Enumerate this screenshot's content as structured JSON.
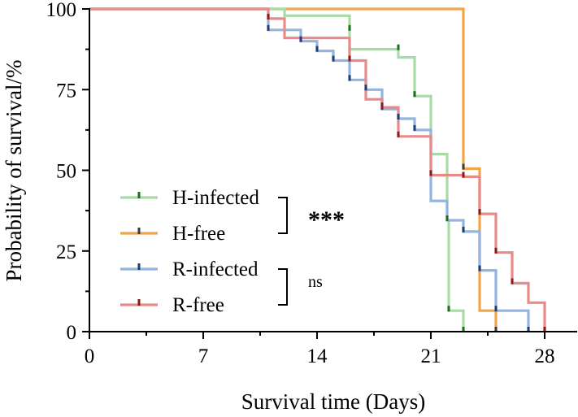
{
  "chart_data": {
    "type": "line",
    "subtype": "kaplan-meier",
    "title": "",
    "xlabel": "Survival time (Days)",
    "ylabel": "Probability of survival/%",
    "xlim": [
      0,
      30
    ],
    "ylim": [
      0,
      100
    ],
    "xticks": [
      0,
      7,
      14,
      21,
      28
    ],
    "yticks": [
      0,
      25,
      50,
      75,
      100
    ],
    "series": [
      {
        "name": "H-infected",
        "color": "#a6dba6",
        "tick_color": "#1f6b1f",
        "steps": [
          [
            0,
            100
          ],
          [
            12,
            100
          ],
          [
            12,
            97.9
          ],
          [
            16,
            97.9
          ],
          [
            16,
            93.5
          ],
          [
            16,
            87.5
          ],
          [
            19,
            87.5
          ],
          [
            19,
            85
          ],
          [
            20,
            85
          ],
          [
            20,
            73
          ],
          [
            21,
            73
          ],
          [
            21,
            55
          ],
          [
            22,
            55
          ],
          [
            22,
            34.5
          ],
          [
            22.1,
            34.5
          ],
          [
            22.1,
            6.5
          ],
          [
            23,
            6.5
          ],
          [
            23,
            0
          ]
        ],
        "censored": [
          [
            16,
            93.5
          ],
          [
            19,
            87.5
          ],
          [
            20,
            73
          ],
          [
            22,
            34.5
          ],
          [
            22.1,
            6.5
          ],
          [
            23,
            0
          ]
        ]
      },
      {
        "name": "H-free",
        "color": "#f0a54a",
        "tick_color": "#3a3a3a",
        "steps": [
          [
            0,
            100
          ],
          [
            23,
            100
          ],
          [
            23,
            50.5
          ],
          [
            24,
            50.5
          ],
          [
            24,
            6.5
          ],
          [
            25,
            6.5
          ],
          [
            25,
            0
          ]
        ],
        "censored": [
          [
            23,
            50.5
          ],
          [
            25,
            0
          ]
        ]
      },
      {
        "name": "R-infected",
        "color": "#94b4e0",
        "tick_color": "#1d3d75",
        "steps": [
          [
            0,
            100
          ],
          [
            11,
            100
          ],
          [
            11,
            93.5
          ],
          [
            13,
            93.5
          ],
          [
            13,
            90
          ],
          [
            14,
            90
          ],
          [
            14,
            87
          ],
          [
            15,
            87
          ],
          [
            15,
            84
          ],
          [
            16,
            84
          ],
          [
            16,
            78
          ],
          [
            17,
            78
          ],
          [
            17,
            75
          ],
          [
            18,
            75
          ],
          [
            18,
            69
          ],
          [
            19,
            69
          ],
          [
            19,
            66
          ],
          [
            20,
            66
          ],
          [
            20,
            62.5
          ],
          [
            21,
            62.5
          ],
          [
            21,
            40.5
          ],
          [
            22,
            40.5
          ],
          [
            22,
            34.5
          ],
          [
            23,
            34.5
          ],
          [
            23,
            31
          ],
          [
            24,
            31
          ],
          [
            24,
            19
          ],
          [
            25,
            19
          ],
          [
            25,
            6.5
          ],
          [
            27,
            6.5
          ],
          [
            27,
            0
          ]
        ],
        "censored": [
          [
            11,
            93.5
          ],
          [
            13,
            90
          ],
          [
            14,
            87
          ],
          [
            15,
            84
          ],
          [
            16,
            78
          ],
          [
            17,
            75
          ],
          [
            18,
            69
          ],
          [
            19,
            66
          ],
          [
            20,
            62.5
          ],
          [
            23,
            31
          ],
          [
            24,
            19
          ],
          [
            25,
            6.5
          ],
          [
            27,
            0
          ]
        ]
      },
      {
        "name": "R-free",
        "color": "#e88a8a",
        "tick_color": "#8b1a1a",
        "steps": [
          [
            0,
            100
          ],
          [
            11,
            100
          ],
          [
            11,
            97
          ],
          [
            12,
            97
          ],
          [
            12,
            91
          ],
          [
            16,
            91
          ],
          [
            16,
            84
          ],
          [
            17,
            84
          ],
          [
            17,
            72
          ],
          [
            18,
            72
          ],
          [
            18,
            69.5
          ],
          [
            19,
            69.5
          ],
          [
            19,
            60.5
          ],
          [
            21,
            60.5
          ],
          [
            21,
            48.5
          ],
          [
            23,
            48.5
          ],
          [
            23,
            48
          ],
          [
            24,
            48
          ],
          [
            24,
            36.5
          ],
          [
            25,
            36.5
          ],
          [
            25,
            24.5
          ],
          [
            26,
            24.5
          ],
          [
            26,
            15
          ],
          [
            27,
            15
          ],
          [
            27,
            9
          ],
          [
            28,
            9
          ],
          [
            28,
            0
          ]
        ],
        "censored": [
          [
            11,
            97
          ],
          [
            16,
            84
          ],
          [
            18,
            69.5
          ],
          [
            19,
            60.5
          ],
          [
            21,
            48.5
          ],
          [
            23,
            48
          ],
          [
            24,
            36.5
          ],
          [
            25,
            24.5
          ],
          [
            26,
            15
          ],
          [
            28,
            0
          ]
        ]
      }
    ],
    "significance": [
      {
        "label": "***",
        "between": [
          "H-infected",
          "H-free"
        ]
      },
      {
        "label": "ns",
        "between": [
          "R-infected",
          "R-free"
        ]
      }
    ],
    "legend_position": "center-left"
  }
}
